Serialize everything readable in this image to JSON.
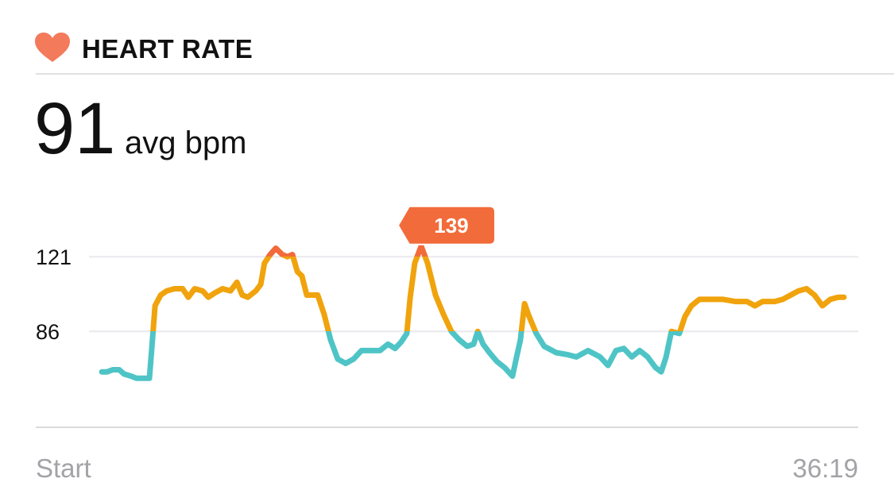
{
  "header": {
    "title": "HEART RATE"
  },
  "summary": {
    "value": 91,
    "unit": "avg bpm"
  },
  "chart_data": {
    "type": "line",
    "x": [
      175,
      189,
      204,
      221,
      234,
      253,
      267,
      284,
      301,
      307,
      316,
      331,
      347,
      368,
      389,
      404,
      421,
      442,
      457,
      474,
      495,
      516,
      533,
      547,
      562,
      583,
      596,
      606,
      621,
      636,
      653,
      667,
      680,
      693,
      705,
      718,
      731,
      747,
      764,
      781,
      800,
      821,
      842,
      863,
      884,
      912,
      933,
      952,
      968,
      983,
      992,
      1004,
      1021,
      1038,
      1059,
      1080,
      1101,
      1122,
      1143,
      1160,
      1171,
      1185,
      1202,
      1221,
      1242,
      1263,
      1274,
      1284,
      1295,
      1307,
      1326,
      1347,
      1379,
      1411,
      1432,
      1463,
      1495,
      1516,
      1537,
      1558,
      1579,
      1600,
      1621,
      1642,
      1657,
      1670,
      1684,
      1705,
      1720,
      1737,
      1758,
      1790,
      1821,
      1853,
      1884,
      1905,
      1926,
      1958,
      1979,
      2000,
      2021,
      2042,
      2063,
      2084,
      2105,
      2126,
      2141
    ],
    "values": [
      67,
      67,
      68,
      68,
      66,
      65,
      64,
      64,
      64,
      77,
      98,
      103,
      105,
      106,
      106,
      102,
      106,
      105,
      102,
      104,
      106,
      105,
      109,
      103,
      102,
      105,
      108,
      118,
      122,
      125,
      122,
      121,
      122,
      114,
      112,
      103,
      103,
      103,
      94,
      82,
      73,
      71,
      73,
      77,
      77,
      77,
      80,
      78,
      81,
      85,
      102,
      118,
      126,
      118,
      103,
      94,
      86,
      82,
      79,
      80,
      86,
      80,
      76,
      72,
      69,
      65,
      74,
      82,
      99,
      93,
      85,
      79,
      76,
      75,
      74,
      77,
      74,
      70,
      77,
      78,
      74,
      77,
      74,
      69,
      67,
      74,
      86,
      85,
      93,
      98,
      101,
      101,
      101,
      100,
      100,
      98,
      100,
      100,
      101,
      103,
      105,
      106,
      103,
      98,
      101,
      102,
      102
    ],
    "xlim": [
      0,
      2179
    ],
    "xticks": [
      {
        "value": 0,
        "label": "Start"
      },
      {
        "value": 2179,
        "label": "36:19"
      }
    ],
    "ylim": [
      41,
      152
    ],
    "yticks": [
      86,
      121
    ],
    "zone_colors": [
      "#4fc4c6",
      "#f0a30c",
      "#f26b3a"
    ],
    "max_label": 139,
    "grid": true
  }
}
